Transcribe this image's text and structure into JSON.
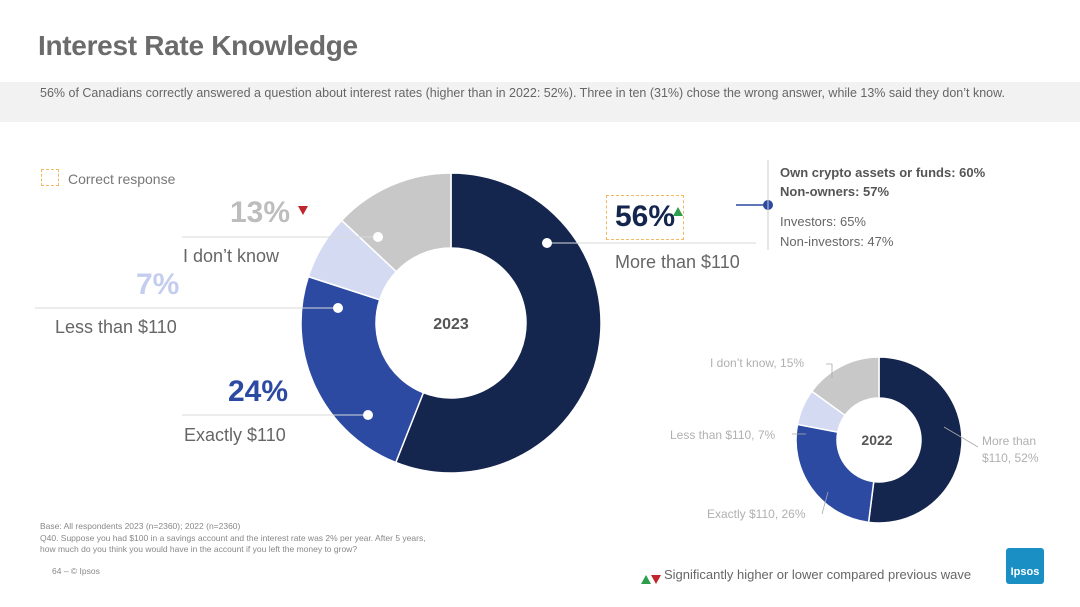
{
  "title": "Interest Rate Knowledge",
  "subtitle": "56% of Canadians correctly answered a question about interest rates (higher than in 2022: 52%). Three in ten (31%) chose the wrong answer, while 13% said they don’t know.",
  "legend": {
    "correct_response": "Correct response"
  },
  "main_labels": {
    "dont_know_pct": "13%",
    "dont_know": "I don’t know",
    "less_pct": "7%",
    "less": "Less than $110",
    "exactly_pct": "24%",
    "exactly": "Exactly $110",
    "more_pct": "56%",
    "more": "More than $110"
  },
  "callout": {
    "line1": "Own crypto assets or funds: 60%",
    "line2": "Non-owners: 57%",
    "line3": "Investors: 65%",
    "line4": "Non-investors: 47%"
  },
  "small_labels": {
    "dont_know": "I don’t know, 15%",
    "less": "Less than $110, 7%",
    "exactly": "Exactly $110, 26%",
    "more_1": "More than",
    "more_2": "$110, 52%"
  },
  "footnote": {
    "base": "Base: All respondents 2023 (n=2360); 2022 (n=2360)",
    "q1": "Q40. Suppose you had $100 in a savings account and the interest rate was 2% per year. After 5 years,",
    "q2": "how much do you think you would have in the account if you left the money to grow?"
  },
  "page": "64 –  © Ipsos",
  "significance": "Significantly higher or lower compared previous wave",
  "logo": "Ipsos",
  "colors": {
    "more": "#14254e",
    "exactly": "#2c4aa2",
    "less": "#d3daf2",
    "dont_know": "#c8c8c8"
  },
  "chart_data": [
    {
      "type": "pie",
      "title": "2023",
      "categories": [
        "More than $110",
        "Exactly $110",
        "Less than $110",
        "I don’t know"
      ],
      "values": [
        56,
        24,
        7,
        13
      ]
    },
    {
      "type": "pie",
      "title": "2022",
      "categories": [
        "More than $110",
        "Exactly $110",
        "Less than $110",
        "I don’t know"
      ],
      "values": [
        52,
        26,
        7,
        15
      ]
    }
  ]
}
